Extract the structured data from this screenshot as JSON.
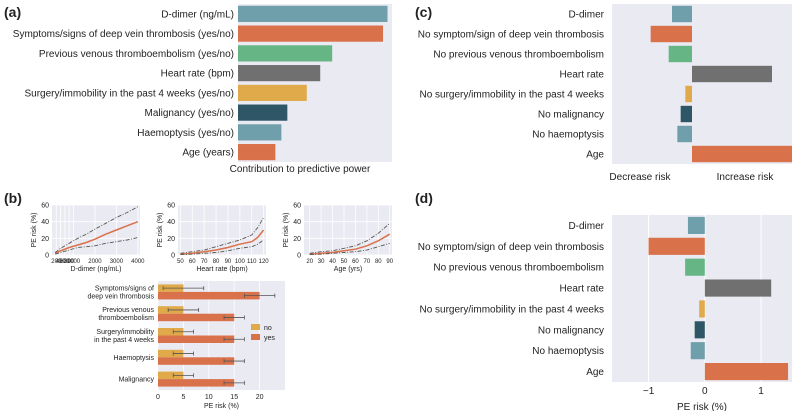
{
  "colors": {
    "teal": "#6f9fab",
    "orange": "#d9714a",
    "green": "#66b585",
    "gray": "#707070",
    "gold": "#e0aa4a",
    "navy": "#2e5667",
    "plot_bg": "#eaeaf2",
    "ci_gray": "#555555"
  },
  "chart_data": [
    {
      "panel": "(a)",
      "type": "bar",
      "orientation": "horizontal",
      "categories": [
        "D-dimer (ng/mL)",
        "Symptoms/signs of deep vein thrombosis (yes/no)",
        "Previous venous thromboembolism (yes/no)",
        "Heart rate (bpm)",
        "Surgery/immobility in the past 4 weeks (yes/no)",
        "Malignancy (yes/no)",
        "Haemoptysis (yes/no)",
        "Age (years)"
      ],
      "values": [
        100,
        97,
        63,
        55,
        46,
        33,
        29,
        25
      ],
      "bar_colors": [
        "teal",
        "orange",
        "green",
        "gray",
        "gold",
        "navy",
        "teal",
        "orange"
      ],
      "xlabel": "Contribution to predictive power",
      "xlim": [
        0,
        103
      ]
    },
    {
      "panel": "(b)",
      "type": "line",
      "subplots": [
        {
          "xlabel": "D-dimer (ng/mL)",
          "ylabel": "PE risk (%)",
          "xlim": [
            0,
            4100
          ],
          "ylim": [
            0,
            60
          ],
          "xticks": [
            200,
            400,
            600,
            800,
            1000,
            2000,
            3000,
            4000
          ],
          "yticks": [
            0,
            20,
            40,
            60
          ],
          "x": [
            150,
            400,
            800,
            1200,
            1600,
            2000,
            2500,
            3000,
            3500,
            4000
          ],
          "series": [
            {
              "name": "estimate",
              "values": [
                2,
                5,
                9,
                12,
                15,
                19,
                25,
                30,
                35,
                40
              ]
            },
            {
              "name": "upper",
              "values": [
                3,
                8,
                14,
                20,
                25,
                31,
                38,
                45,
                51,
                58
              ]
            },
            {
              "name": "lower",
              "values": [
                1,
                3,
                6,
                9,
                10,
                11,
                14,
                16,
                18,
                21
              ]
            }
          ]
        },
        {
          "xlabel": "Heart rate (bpm)",
          "ylabel": "PE risk (%)",
          "xlim": [
            48,
            122
          ],
          "ylim": [
            0,
            60
          ],
          "xticks": [
            50,
            60,
            70,
            80,
            90,
            100,
            110,
            120
          ],
          "yticks": [
            0,
            20,
            40,
            60
          ],
          "x": [
            50,
            60,
            70,
            80,
            90,
            100,
            110,
            115,
            120
          ],
          "series": [
            {
              "name": "estimate",
              "values": [
                1,
                2,
                4,
                6,
                9,
                13,
                16,
                21,
                30
              ]
            },
            {
              "name": "upper",
              "values": [
                2,
                4,
                6,
                10,
                14,
                18,
                24,
                33,
                45
              ]
            },
            {
              "name": "lower",
              "values": [
                0.5,
                1,
                2,
                3,
                5,
                8,
                10,
                13,
                18
              ]
            }
          ]
        },
        {
          "xlabel": "Age (yrs)",
          "ylabel": "PE risk (%)",
          "xlim": [
            15,
            92
          ],
          "ylim": [
            0,
            60
          ],
          "xticks": [
            20,
            30,
            40,
            50,
            60,
            70,
            80,
            90
          ],
          "yticks": [
            0,
            20,
            40,
            60
          ],
          "x": [
            20,
            30,
            40,
            50,
            60,
            70,
            80,
            90
          ],
          "series": [
            {
              "name": "estimate",
              "values": [
                1,
                2,
                3,
                5,
                7,
                11,
                17,
                25
              ]
            },
            {
              "name": "upper",
              "values": [
                2,
                4,
                5,
                8,
                11,
                17,
                26,
                38
              ]
            },
            {
              "name": "lower",
              "values": [
                0.5,
                1,
                2,
                3,
                4,
                6,
                10,
                14
              ]
            }
          ]
        },
        {
          "type": "bar",
          "orientation": "horizontal",
          "categories": [
            "Symptoms/signs of\ndeep vein thrombosis",
            "Previous venous\nthromboembolism",
            "Surgery/immobility\nin the past 4 weeks",
            "Haemoptysis",
            "Malignancy"
          ],
          "series": [
            {
              "name": "no",
              "color": "gold",
              "values": [
                5,
                5,
                5,
                5,
                5
              ],
              "err": [
                4,
                3,
                2,
                2,
                2
              ]
            },
            {
              "name": "yes",
              "color": "orange",
              "values": [
                20,
                15,
                15,
                15,
                15
              ],
              "err": [
                3,
                2,
                2,
                2,
                2
              ]
            }
          ],
          "xlabel": "PE risk (%)",
          "xlim": [
            0,
            25
          ],
          "xticks": [
            0,
            5,
            10,
            15,
            20
          ]
        }
      ]
    },
    {
      "panel": "(c)",
      "type": "bar",
      "orientation": "horizontal",
      "categories": [
        "D-dimer",
        "No symptom/sign of deep vein thrombosis",
        "No previous venous thromboembolism",
        "Heart rate",
        "No surgery/immobility in the past 4 weeks",
        "No malignancy",
        "No haemoptysis",
        "Age"
      ],
      "values": [
        -0.3,
        -0.62,
        -0.35,
        1.2,
        -0.1,
        -0.17,
        -0.22,
        1.5
      ],
      "bar_colors": [
        "teal",
        "orange",
        "green",
        "gray",
        "gold",
        "navy",
        "teal",
        "orange"
      ],
      "xlim": [
        -1.2,
        1.5
      ],
      "left_label": "Decrease risk",
      "right_label": "Increase risk"
    },
    {
      "panel": "(d)",
      "type": "bar",
      "orientation": "horizontal",
      "categories": [
        "D-dimer",
        "No symptom/sign of deep vein thrombosis",
        "No previous venous thromboembolism",
        "Heart rate",
        "No surgery/immobility in the past 4 weeks",
        "No malignancy",
        "No haemoptysis",
        "Age"
      ],
      "values": [
        -0.3,
        -1.0,
        -0.35,
        1.18,
        -0.1,
        -0.18,
        -0.25,
        1.48
      ],
      "bar_colors": [
        "teal",
        "orange",
        "green",
        "gray",
        "gold",
        "navy",
        "teal",
        "orange"
      ],
      "xlim": [
        -1.65,
        1.55
      ],
      "xticks": [
        -1,
        0,
        1
      ],
      "xlabel": "PE risk (%)"
    }
  ]
}
